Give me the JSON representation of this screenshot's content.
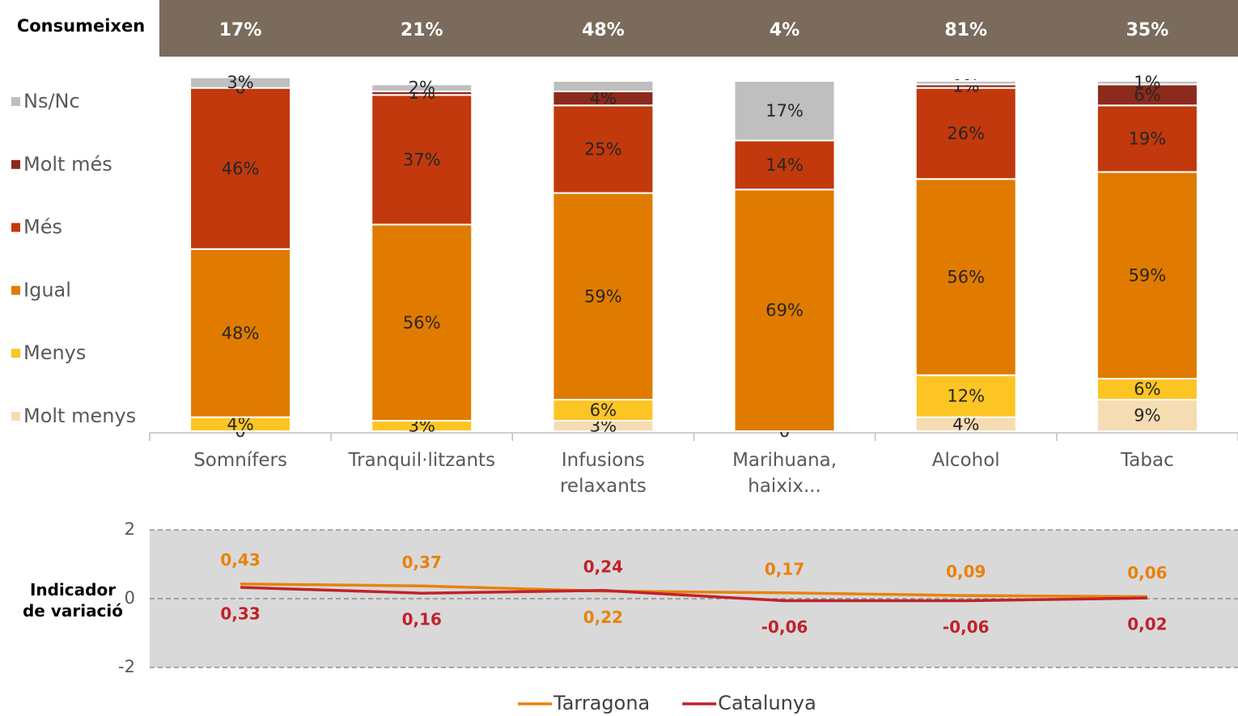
{
  "chart_data": [
    {
      "type": "stacked_bar",
      "header_label": "Consumeixen",
      "consumption": [
        17,
        21,
        48,
        4,
        81,
        35
      ],
      "consumption_labels": [
        "17%",
        "21%",
        "48%",
        "4%",
        "81%",
        "35%"
      ],
      "categories": [
        "Somnífers",
        "Tranquil·litzants",
        "Infusions relaxants",
        "Marihuana, haixix...",
        "Alcohol",
        "Tabac"
      ],
      "series": [
        {
          "name": "Molt menys",
          "color": "#f6dcb2",
          "values": [
            0,
            0,
            3,
            0,
            4,
            9
          ],
          "value_labels": [
            "0",
            null,
            "3%",
            "0",
            "4%",
            "9%"
          ]
        },
        {
          "name": "Menys",
          "color": "#fcc524",
          "values": [
            4,
            3,
            6,
            0,
            12,
            6
          ],
          "value_labels": [
            "4%",
            "3%",
            "6%",
            null,
            "12%",
            "6%"
          ]
        },
        {
          "name": "Igual",
          "color": "#e07b00",
          "values": [
            48,
            56,
            59,
            69,
            56,
            59
          ],
          "value_labels": [
            "48%",
            "56%",
            "59%",
            "69%",
            "56%",
            "59%"
          ]
        },
        {
          "name": "Més",
          "color": "#c1390c",
          "values": [
            46,
            37,
            25,
            14,
            26,
            19
          ],
          "value_labels": [
            "46%",
            "37%",
            "25%",
            "14%",
            "26%",
            "19%"
          ]
        },
        {
          "name": "Molt més",
          "color": "#8c2a1c",
          "values": [
            0,
            1,
            4,
            0,
            1,
            6
          ],
          "value_labels": [
            "0",
            "1%",
            "4%",
            null,
            "1%",
            "6%"
          ]
        },
        {
          "name": "Ns/Nc",
          "color": "#bfbfbf",
          "values": [
            3,
            2,
            3,
            17,
            1,
            1
          ],
          "value_labels": [
            "3%",
            "2%",
            null,
            "17%",
            null,
            "1%"
          ]
        }
      ]
    },
    {
      "type": "line",
      "y_label": "Indicador de variació",
      "ylim": [
        -2,
        2
      ],
      "yticks": [
        -2,
        0,
        2
      ],
      "grid": true,
      "series": [
        {
          "name": "Tarragona",
          "color": "#e8820c",
          "values": [
            0.43,
            0.37,
            0.22,
            0.17,
            0.09,
            0.06
          ],
          "value_labels": [
            "0,43",
            "0,37",
            "0,22",
            "0,17",
            "0,09",
            "0,06"
          ]
        },
        {
          "name": "Catalunya",
          "color": "#c0222a",
          "values": [
            0.33,
            0.16,
            0.24,
            -0.06,
            -0.06,
            0.02
          ],
          "value_labels": [
            "0,33",
            "0,16",
            "0,24",
            "-0,06",
            "-0,06",
            "0,02"
          ]
        }
      ]
    }
  ]
}
